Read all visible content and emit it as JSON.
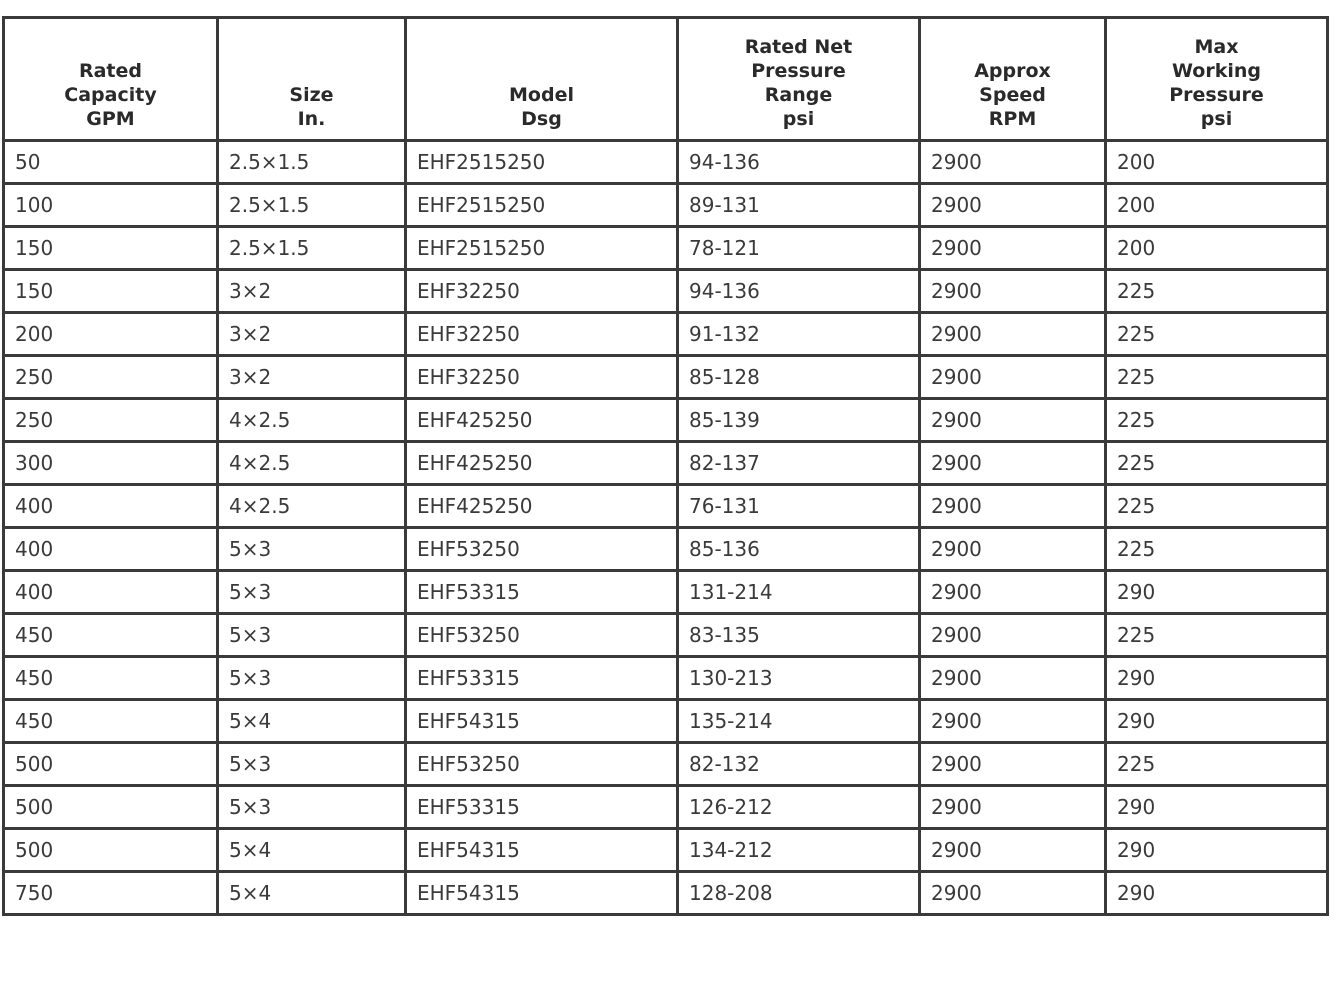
{
  "table": {
    "headers": [
      "Rated\nCapacity\nGPM",
      "Size\nIn.",
      "Model\nDsg",
      "Rated Net\nPressure\nRange\npsi",
      "Approx\nSpeed\nRPM",
      "Max\nWorking\nPressure\npsi"
    ],
    "rows": [
      [
        "50",
        "2.5×1.5",
        "EHF2515250",
        "94-136",
        "2900",
        "200"
      ],
      [
        "100",
        "2.5×1.5",
        "EHF2515250",
        "89-131",
        "2900",
        "200"
      ],
      [
        "150",
        "2.5×1.5",
        "EHF2515250",
        "78-121",
        "2900",
        "200"
      ],
      [
        "150",
        "3×2",
        "EHF32250",
        "94-136",
        "2900",
        "225"
      ],
      [
        "200",
        "3×2",
        "EHF32250",
        "91-132",
        "2900",
        "225"
      ],
      [
        "250",
        "3×2",
        "EHF32250",
        "85-128",
        "2900",
        "225"
      ],
      [
        "250",
        "4×2.5",
        "EHF425250",
        "85-139",
        "2900",
        "225"
      ],
      [
        "300",
        "4×2.5",
        "EHF425250",
        "82-137",
        "2900",
        "225"
      ],
      [
        "400",
        "4×2.5",
        "EHF425250",
        "76-131",
        "2900",
        "225"
      ],
      [
        "400",
        "5×3",
        "EHF53250",
        "85-136",
        "2900",
        "225"
      ],
      [
        "400",
        "5×3",
        "EHF53315",
        "131-214",
        "2900",
        "290"
      ],
      [
        "450",
        "5×3",
        "EHF53250",
        "83-135",
        "2900",
        "225"
      ],
      [
        "450",
        "5×3",
        "EHF53315",
        "130-213",
        "2900",
        "290"
      ],
      [
        "450",
        "5×4",
        "EHF54315",
        "135-214",
        "2900",
        "290"
      ],
      [
        "500",
        "5×3",
        "EHF53250",
        "82-132",
        "2900",
        "225"
      ],
      [
        "500",
        "5×3",
        "EHF53315",
        "126-212",
        "2900",
        "290"
      ],
      [
        "500",
        "5×4",
        "EHF54315",
        "134-212",
        "2900",
        "290"
      ],
      [
        "750",
        "5×4",
        "EHF54315",
        "128-208",
        "2900",
        "290"
      ]
    ]
  }
}
